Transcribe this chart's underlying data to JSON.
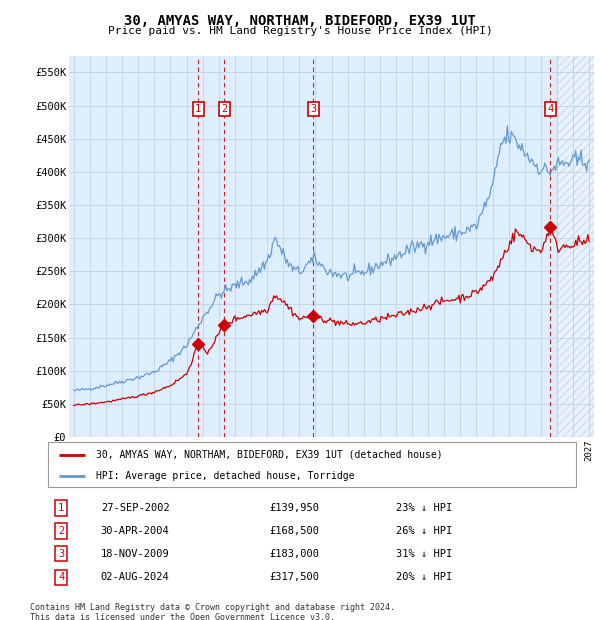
{
  "title": "30, AMYAS WAY, NORTHAM, BIDEFORD, EX39 1UT",
  "subtitle": "Price paid vs. HM Land Registry's House Price Index (HPI)",
  "ylabel_ticks": [
    "£0",
    "£50K",
    "£100K",
    "£150K",
    "£200K",
    "£250K",
    "£300K",
    "£350K",
    "£400K",
    "£450K",
    "£500K",
    "£550K"
  ],
  "ytick_values": [
    0,
    50000,
    100000,
    150000,
    200000,
    250000,
    300000,
    350000,
    400000,
    450000,
    500000,
    550000
  ],
  "ylim": [
    0,
    575000
  ],
  "xlim_start": 1994.7,
  "xlim_end": 2027.3,
  "hatch_start": 2025.0,
  "transactions": [
    {
      "num": 1,
      "date": "27-SEP-2002",
      "price": 139950,
      "x": 2002.73,
      "hpi_pct": "23% ↓ HPI"
    },
    {
      "num": 2,
      "date": "30-APR-2004",
      "price": 168500,
      "x": 2004.33,
      "hpi_pct": "26% ↓ HPI"
    },
    {
      "num": 3,
      "date": "18-NOV-2009",
      "price": 183000,
      "x": 2009.88,
      "hpi_pct": "31% ↓ HPI"
    },
    {
      "num": 4,
      "date": "02-AUG-2024",
      "price": 317500,
      "x": 2024.58,
      "hpi_pct": "20% ↓ HPI"
    }
  ],
  "legend_line1": "30, AMYAS WAY, NORTHAM, BIDEFORD, EX39 1UT (detached house)",
  "legend_line2": "HPI: Average price, detached house, Torridge",
  "footer1": "Contains HM Land Registry data © Crown copyright and database right 2024.",
  "footer2": "This data is licensed under the Open Government Licence v3.0.",
  "price_color": "#cc0000",
  "hpi_color": "#6699cc",
  "bg_color": "#ddeeff",
  "grid_color": "#bbccdd",
  "transaction_box_color": "#cc0000",
  "hpi_anchors": {
    "1995.0": 70000,
    "1996.0": 73000,
    "1997.0": 78000,
    "1998.0": 84000,
    "1999.0": 90000,
    "2000.0": 98000,
    "2001.0": 115000,
    "2002.0": 138000,
    "2003.0": 180000,
    "2004.0": 215000,
    "2005.0": 228000,
    "2006.0": 238000,
    "2007.0": 265000,
    "2007.5": 300000,
    "2008.0": 275000,
    "2008.5": 255000,
    "2009.0": 248000,
    "2009.5": 260000,
    "2010.0": 268000,
    "2010.5": 255000,
    "2011.0": 248000,
    "2012.0": 242000,
    "2013.0": 248000,
    "2014.0": 260000,
    "2015.0": 272000,
    "2016.0": 285000,
    "2017.0": 295000,
    "2018.0": 302000,
    "2019.0": 308000,
    "2020.0": 318000,
    "2021.0": 375000,
    "2021.5": 440000,
    "2022.0": 455000,
    "2022.5": 445000,
    "2023.0": 430000,
    "2023.5": 415000,
    "2024.0": 405000,
    "2024.5": 400000,
    "2025.0": 410000,
    "2026.0": 415000,
    "2027.0": 418000
  },
  "price_anchors": {
    "1995.0": 48000,
    "1996.0": 50000,
    "1997.0": 53000,
    "1998.0": 57000,
    "1999.0": 62000,
    "2000.0": 68000,
    "2001.0": 78000,
    "2002.0": 95000,
    "2002.73": 139950,
    "2003.3": 128000,
    "2004.0": 155000,
    "2004.33": 168500,
    "2005.0": 178000,
    "2006.0": 185000,
    "2007.0": 192000,
    "2007.5": 215000,
    "2008.0": 205000,
    "2009.0": 178000,
    "2009.88": 183000,
    "2010.5": 178000,
    "2011.0": 175000,
    "2012.0": 170000,
    "2013.0": 172000,
    "2014.0": 178000,
    "2015.0": 183000,
    "2016.0": 190000,
    "2017.0": 198000,
    "2018.0": 205000,
    "2019.0": 210000,
    "2020.0": 218000,
    "2021.0": 240000,
    "2022.0": 290000,
    "2022.5": 310000,
    "2023.0": 298000,
    "2023.5": 285000,
    "2024.0": 280000,
    "2024.58": 317500,
    "2025.0": 285000,
    "2026.0": 292000,
    "2027.0": 295000
  }
}
